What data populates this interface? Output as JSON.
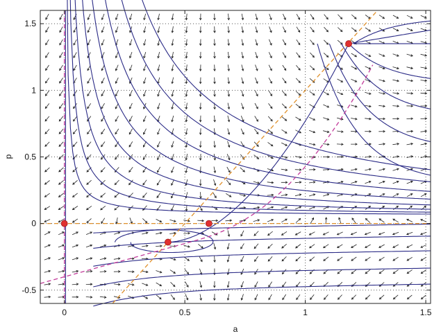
{
  "chart_data": {
    "type": "scatter",
    "xlabel": "a",
    "ylabel": "p",
    "xlim": [
      -0.1,
      1.52
    ],
    "ylim": [
      -0.6,
      1.6
    ],
    "xticks": [
      0,
      0.5,
      1,
      1.5
    ],
    "xtick_labels": [
      "0",
      "0.5",
      "1",
      "1.5"
    ],
    "yticks": [
      -0.5,
      0,
      0.5,
      1,
      1.5
    ],
    "ytick_labels": [
      "-0.5",
      "0",
      "0.5",
      "1",
      "1.5"
    ],
    "grid": true,
    "colors": {
      "trajectory": "#2a2a86",
      "arrow": "#222222",
      "equilibrium": "#e03030",
      "isocline_orange": "#e0902a",
      "isocline_magenta": "#c23a9a"
    },
    "equilibria": [
      {
        "x": 0,
        "y": 0
      },
      {
        "x": 0.6,
        "y": 0
      },
      {
        "x": 0.43,
        "y": -0.14
      },
      {
        "x": 1.18,
        "y": 1.35
      }
    ]
  }
}
